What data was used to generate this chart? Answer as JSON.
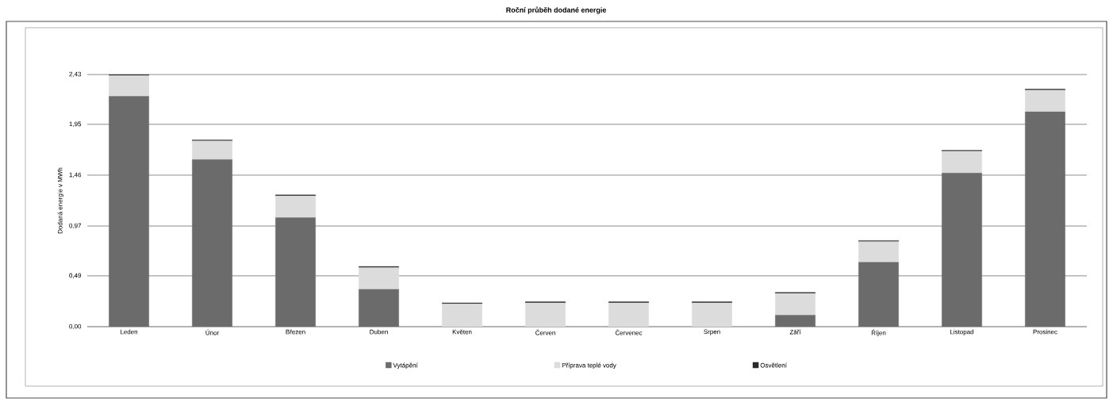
{
  "chart_data": {
    "type": "bar",
    "stacked": true,
    "title": "Roční průběh dodané energie",
    "ylabel": "Dodaná energie v MWh",
    "categories": [
      "Leden",
      "Únor",
      "Březen",
      "Duben",
      "Květen",
      "Červen",
      "Červenec",
      "Srpen",
      "Září",
      "Říjen",
      "Listopad",
      "Prosinec"
    ],
    "series": [
      {
        "name": "Vytápění",
        "color": "#6b6b6b",
        "values": [
          2.22,
          1.61,
          1.05,
          0.36,
          0,
          0,
          0,
          0,
          0.11,
          0.62,
          1.48,
          2.07
        ]
      },
      {
        "name": "Příprava teplé vody",
        "color": "#dcdcdc",
        "values": [
          0.2,
          0.18,
          0.21,
          0.21,
          0.22,
          0.23,
          0.23,
          0.23,
          0.21,
          0.2,
          0.21,
          0.21
        ]
      },
      {
        "name": "Osvětlení",
        "color": "#2a2a2a",
        "values": [
          0.01,
          0.01,
          0.01,
          0.01,
          0.01,
          0.01,
          0.01,
          0.01,
          0.01,
          0.01,
          0.01,
          0.01
        ]
      }
    ],
    "ylim": [
      0,
      2.43
    ],
    "yticks": [
      {
        "value": 0,
        "label": "0,00"
      },
      {
        "value": 0.49,
        "label": "0,49"
      },
      {
        "value": 0.97,
        "label": "0,97"
      },
      {
        "value": 1.46,
        "label": "1,46"
      },
      {
        "value": 1.95,
        "label": "1,95"
      },
      {
        "value": 2.43,
        "label": "2,43"
      }
    ],
    "grid": "y",
    "legend": "bottom"
  }
}
